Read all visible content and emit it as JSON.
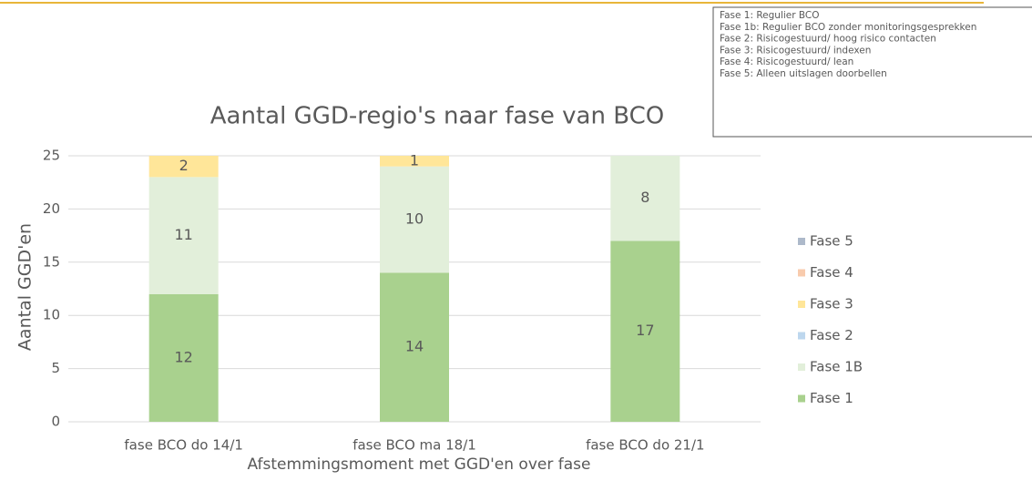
{
  "chart_data": {
    "type": "stacked_bar",
    "title": "Aantal GGD-regio's naar fase van BCO",
    "x_label": "Afstemmingsmoment met GGD'en over fase",
    "y_label": "Aantal GGD'en",
    "categories": [
      "fase BCO do 14/1",
      "fase BCO ma 18/1",
      "fase BCO do 21/1"
    ],
    "series": [
      {
        "name": "Fase 1",
        "color": "#a9d18e",
        "values": [
          12,
          14,
          17
        ]
      },
      {
        "name": "Fase 1B",
        "color": "#e2efda",
        "values": [
          11,
          10,
          8
        ]
      },
      {
        "name": "Fase 2",
        "color": "#bdd7ee",
        "values": [
          0,
          0,
          0
        ]
      },
      {
        "name": "Fase 3",
        "color": "#ffe699",
        "values": [
          2,
          1,
          0
        ]
      },
      {
        "name": "Fase 4",
        "color": "#f8cbad",
        "values": [
          0,
          0,
          0
        ]
      },
      {
        "name": "Fase 5",
        "color": "#adb9ca",
        "values": [
          0,
          0,
          0
        ]
      }
    ],
    "ylim": [
      0,
      25
    ],
    "yticks": [
      0,
      5,
      10,
      15,
      20,
      25
    ],
    "grid": true,
    "legend": "right",
    "annotations": [
      "Fase 1: Regulier BCO",
      "Fase 1b: Regulier BCO zonder monitoringsgesprekken",
      "Fase 2: Risicogestuurd/ hoog risico contacten",
      "Fase 3: Risicogestuurd/ indexen",
      "Fase 4: Risicogestuurd/ lean",
      "Fase 5: Alleen uitslagen doorbellen"
    ]
  }
}
